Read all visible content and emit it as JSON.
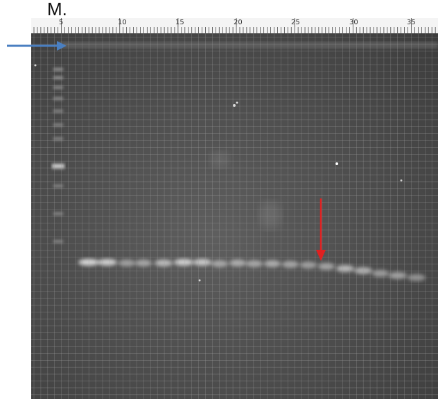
{
  "marker_label": "M.",
  "ruler": {
    "numbers": [
      "5",
      "10",
      "15",
      "20",
      "25",
      "30",
      "35"
    ]
  },
  "colors": {
    "blue_arrow": "#4a7fc1",
    "red_arrow": "#e02020",
    "gel_background": "#4a4a4a",
    "grid_line": "#9a9a9a",
    "band": "#d8d8d8"
  },
  "annotations": {
    "left_arrow_icon": "arrow-right-icon",
    "band_arrow_icon": "arrow-down-icon"
  }
}
